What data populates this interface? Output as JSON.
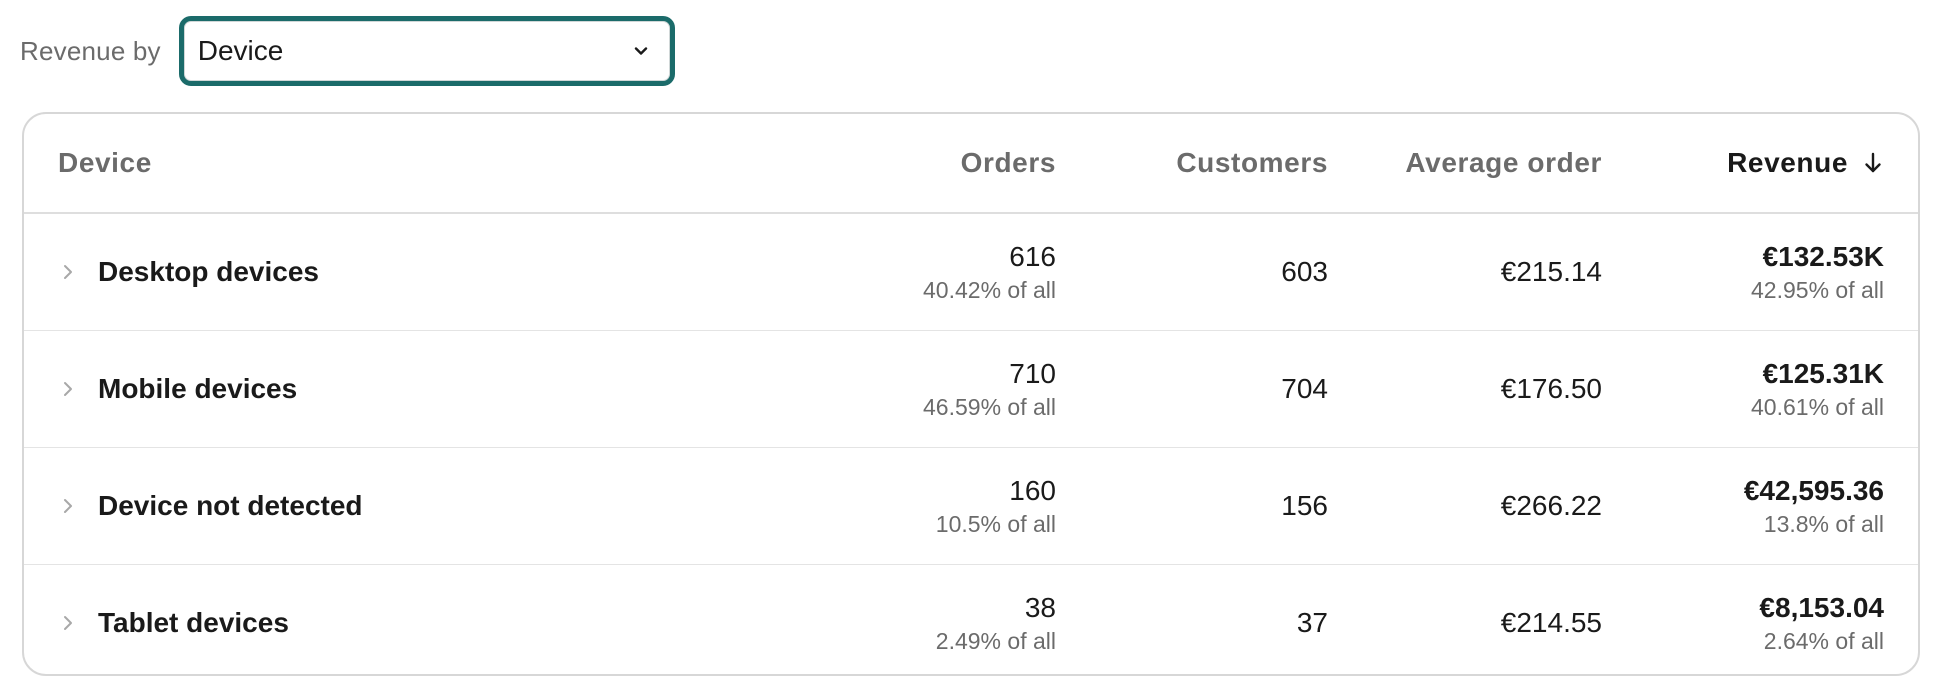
{
  "controls": {
    "label": "Revenue by",
    "select_value": "Device",
    "select_icon": "chevron-down-icon"
  },
  "colors": {
    "accent": "#1b6b6a",
    "text": "#1a1a1a",
    "muted": "#6b6b6b",
    "border": "#d7d7d7"
  },
  "table": {
    "headers": {
      "device": "Device",
      "orders": "Orders",
      "customers": "Customers",
      "average_order": "Average order",
      "revenue": "Revenue"
    },
    "sort": {
      "column": "revenue",
      "direction": "descending",
      "icon": "arrow-down-icon"
    },
    "rows": [
      {
        "name": "Desktop devices",
        "orders": "616",
        "orders_share": "40.42% of all",
        "customers": "603",
        "average_order": "€215.14",
        "revenue": "€132.53K",
        "revenue_share": "42.95% of all"
      },
      {
        "name": "Mobile devices",
        "orders": "710",
        "orders_share": "46.59% of all",
        "customers": "704",
        "average_order": "€176.50",
        "revenue": "€125.31K",
        "revenue_share": "40.61% of all"
      },
      {
        "name": "Device not detected",
        "orders": "160",
        "orders_share": "10.5% of all",
        "customers": "156",
        "average_order": "€266.22",
        "revenue": "€42,595.36",
        "revenue_share": "13.8% of all"
      },
      {
        "name": "Tablet devices",
        "orders": "38",
        "orders_share": "2.49% of all",
        "customers": "37",
        "average_order": "€214.55",
        "revenue": "€8,153.04",
        "revenue_share": "2.64% of all"
      }
    ]
  }
}
